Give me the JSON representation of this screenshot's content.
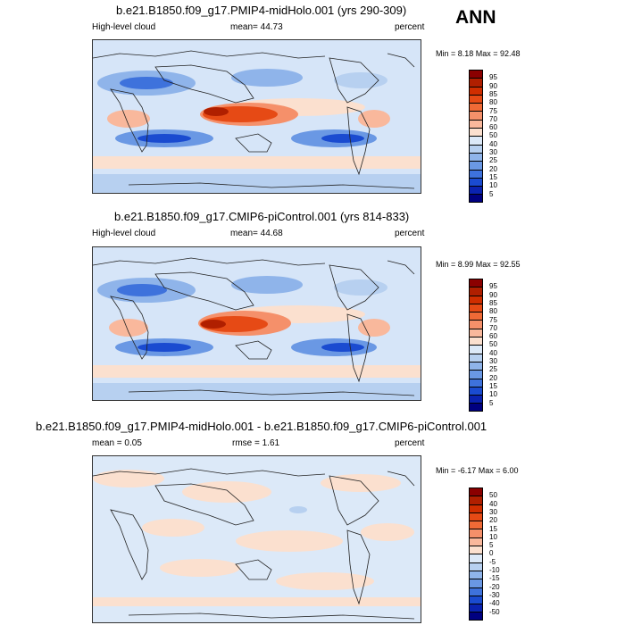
{
  "season": "ANN",
  "panels": [
    {
      "title": "b.e21.B1850.f09_g17.PMIP4-midHolo.001 (yrs 290-309)",
      "left_label": "High-level cloud",
      "mean_label": "mean=  44.73",
      "units": "percent",
      "minmax": "Min =   8.18 Max =  92.48",
      "colorbar": {
        "ticks": [
          "95",
          "90",
          "85",
          "80",
          "75",
          "70",
          "60",
          "50",
          "40",
          "30",
          "25",
          "20",
          "15",
          "10",
          "5"
        ],
        "colors": [
          "#8b0000",
          "#b01f00",
          "#d02e00",
          "#e64a15",
          "#f06a36",
          "#f5906a",
          "#f9b89c",
          "#fbe0cf",
          "#dce9f8",
          "#b7d0f0",
          "#8fb4ea",
          "#6a98e4",
          "#3e72dc",
          "#1a4bd0",
          "#0a22b0",
          "#000080"
        ]
      }
    },
    {
      "title": "b.e21.B1850.f09_g17.CMIP6-piControl.001 (yrs 814-833)",
      "left_label": "High-level cloud",
      "mean_label": "mean=  44.68",
      "units": "percent",
      "minmax": "Min =   8.99 Max =  92.55",
      "colorbar": {
        "ticks": [
          "95",
          "90",
          "85",
          "80",
          "75",
          "70",
          "60",
          "50",
          "40",
          "30",
          "25",
          "20",
          "15",
          "10",
          "5"
        ],
        "colors": [
          "#8b0000",
          "#b01f00",
          "#d02e00",
          "#e64a15",
          "#f06a36",
          "#f5906a",
          "#f9b89c",
          "#fbe0cf",
          "#dce9f8",
          "#b7d0f0",
          "#8fb4ea",
          "#6a98e4",
          "#3e72dc",
          "#1a4bd0",
          "#0a22b0",
          "#000080"
        ]
      }
    },
    {
      "title": "b.e21.B1850.f09_g17.PMIP4-midHolo.001 - b.e21.B1850.f09_g17.CMIP6-piControl.001",
      "left_label": "mean =   0.05",
      "mean_label": "rmse =   1.61",
      "units": "percent",
      "minmax": "Min =  -6.17 Max =   6.00",
      "colorbar": {
        "ticks": [
          "50",
          "40",
          "30",
          "20",
          "15",
          "10",
          "5",
          "0",
          "-5",
          "-10",
          "-15",
          "-20",
          "-30",
          "-40",
          "-50"
        ],
        "colors": [
          "#8b0000",
          "#b01f00",
          "#d02e00",
          "#e64a15",
          "#f06a36",
          "#f5906a",
          "#f9b89c",
          "#fbe0cf",
          "#dce9f8",
          "#b7d0f0",
          "#8fb4ea",
          "#6a98e4",
          "#3e72dc",
          "#1a4bd0",
          "#0a22b0",
          "#000080"
        ]
      }
    }
  ]
}
